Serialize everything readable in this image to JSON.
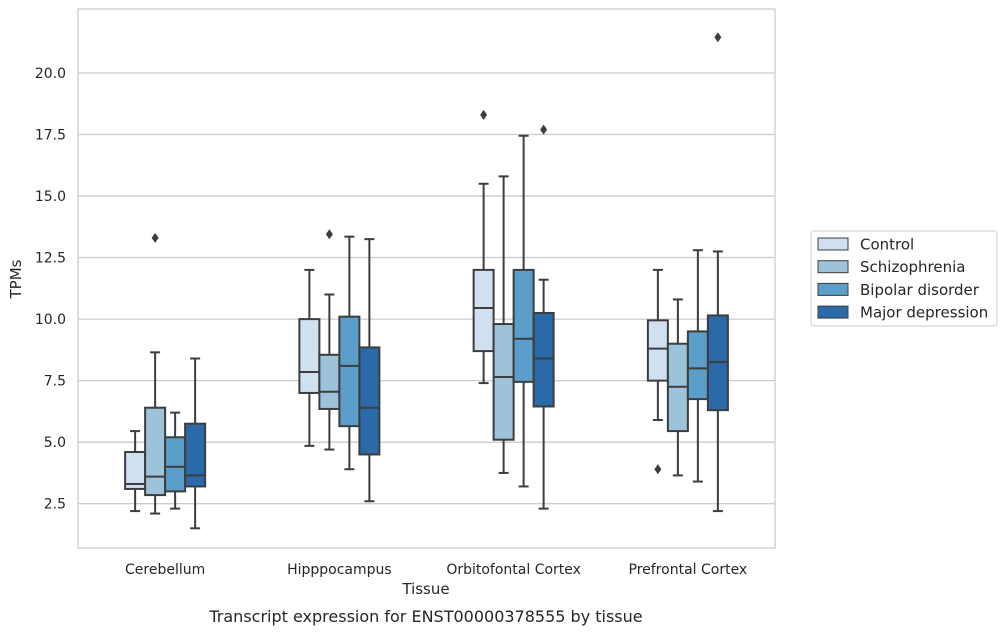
{
  "chart_data": {
    "type": "box",
    "caption": "Transcript expression for ENST00000378555 by tissue",
    "xlabel": "Tissue",
    "ylabel": "TPMs",
    "ylim": [
      0.7,
      22.6
    ],
    "yticks": [
      2.5,
      5.0,
      7.5,
      10.0,
      12.5,
      15.0,
      17.5,
      20.0
    ],
    "ytick_labels": [
      "2.5",
      "5.0",
      "7.5",
      "10.0",
      "12.5",
      "15.0",
      "17.5",
      "20.0"
    ],
    "categories": [
      "Cerebellum",
      "Hipppocampus",
      "Orbitofontal Cortex",
      "Prefrontal Cortex"
    ],
    "grid": "horizontal",
    "legend_position": "right",
    "series": [
      {
        "name": "Control",
        "color": "#d0e0f0",
        "boxes": [
          {
            "whislo": 2.2,
            "q1": 3.1,
            "med": 3.3,
            "q3": 4.6,
            "whishi": 5.45,
            "fliers": []
          },
          {
            "whislo": 4.85,
            "q1": 7.0,
            "med": 7.85,
            "q3": 10.0,
            "whishi": 12.0,
            "fliers": []
          },
          {
            "whislo": 7.4,
            "q1": 8.7,
            "med": 10.45,
            "q3": 12.0,
            "whishi": 15.5,
            "fliers": [
              18.3
            ]
          },
          {
            "whislo": 5.9,
            "q1": 7.5,
            "med": 8.8,
            "q3": 9.95,
            "whishi": 12.0,
            "fliers": [
              3.9
            ]
          }
        ]
      },
      {
        "name": "Schizophrenia",
        "color": "#9cc3da",
        "boxes": [
          {
            "whislo": 2.1,
            "q1": 2.85,
            "med": 3.6,
            "q3": 6.4,
            "whishi": 8.65,
            "fliers": [
              13.3
            ]
          },
          {
            "whislo": 4.7,
            "q1": 6.35,
            "med": 7.05,
            "q3": 8.55,
            "whishi": 11.0,
            "fliers": [
              13.45
            ]
          },
          {
            "whislo": 3.75,
            "q1": 5.1,
            "med": 7.65,
            "q3": 9.8,
            "whishi": 15.8,
            "fliers": []
          },
          {
            "whislo": 3.65,
            "q1": 5.45,
            "med": 7.25,
            "q3": 9.0,
            "whishi": 10.8,
            "fliers": []
          }
        ]
      },
      {
        "name": "Bipolar disorder",
        "color": "#5b9ec9",
        "boxes": [
          {
            "whislo": 2.3,
            "q1": 3.0,
            "med": 4.0,
            "q3": 5.2,
            "whishi": 6.2,
            "fliers": []
          },
          {
            "whislo": 3.9,
            "q1": 5.65,
            "med": 8.1,
            "q3": 10.1,
            "whishi": 13.35,
            "fliers": []
          },
          {
            "whislo": 3.2,
            "q1": 7.45,
            "med": 9.2,
            "q3": 12.0,
            "whishi": 17.45,
            "fliers": []
          },
          {
            "whislo": 3.4,
            "q1": 6.75,
            "med": 8.0,
            "q3": 9.5,
            "whishi": 12.8,
            "fliers": []
          }
        ]
      },
      {
        "name": "Major depression",
        "color": "#2b6aa8",
        "boxes": [
          {
            "whislo": 1.5,
            "q1": 3.2,
            "med": 3.65,
            "q3": 5.75,
            "whishi": 8.4,
            "fliers": []
          },
          {
            "whislo": 2.6,
            "q1": 4.5,
            "med": 6.4,
            "q3": 8.85,
            "whishi": 13.25,
            "fliers": []
          },
          {
            "whislo": 2.3,
            "q1": 6.45,
            "med": 8.4,
            "q3": 10.25,
            "whishi": 11.6,
            "fliers": [
              17.7
            ]
          },
          {
            "whislo": 2.2,
            "q1": 6.3,
            "med": 8.25,
            "q3": 10.15,
            "whishi": 12.75,
            "fliers": [
              21.45
            ]
          }
        ]
      }
    ]
  }
}
